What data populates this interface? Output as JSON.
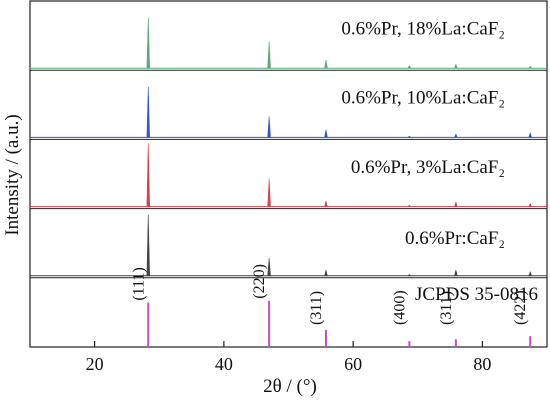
{
  "chart_data": {
    "type": "line",
    "x_label": "2θ / (°)",
    "y_label": "Intensity / (a.u.)",
    "xlim": [
      10,
      90
    ],
    "xticks": [
      20,
      40,
      60,
      80
    ],
    "ylim": [
      0,
      100
    ],
    "series": [
      {
        "name": "0.6%Pr, 18%La:CaF₂",
        "color": "#5aa876",
        "x": [
          28.3,
          47.0,
          55.8,
          68.7,
          75.9,
          87.4
        ],
        "values": [
          80,
          42,
          13,
          4,
          6,
          3
        ]
      },
      {
        "name": "0.6%Pr, 10%La:CaF₂",
        "color": "#3557c4",
        "x": [
          28.3,
          47.0,
          55.8,
          68.7,
          75.9,
          87.4
        ],
        "values": [
          80,
          33,
          12,
          2,
          5,
          7
        ]
      },
      {
        "name": "0.6%Pr, 3%La:CaF₂",
        "color": "#d6404c",
        "x": [
          28.3,
          47.0,
          55.8,
          68.7,
          75.9,
          87.4
        ],
        "values": [
          100,
          44,
          9,
          2,
          7,
          5
        ]
      },
      {
        "name": "0.6%Pr:CaF₂",
        "color": "#444444",
        "x": [
          28.3,
          47.0,
          55.8,
          68.7,
          75.9,
          87.4
        ],
        "values": [
          97,
          28,
          9,
          2,
          9,
          6
        ]
      },
      {
        "name": "JCPDS 35-0816",
        "color": "#c050c0",
        "x": [
          28.3,
          47.0,
          55.8,
          68.7,
          75.9,
          87.4
        ],
        "values": [
          67,
          70,
          24,
          6,
          9,
          14
        ],
        "peak_labels": [
          "(111)",
          "(220)",
          "(311)",
          "(400)",
          "(311)",
          "(422)"
        ]
      }
    ]
  }
}
